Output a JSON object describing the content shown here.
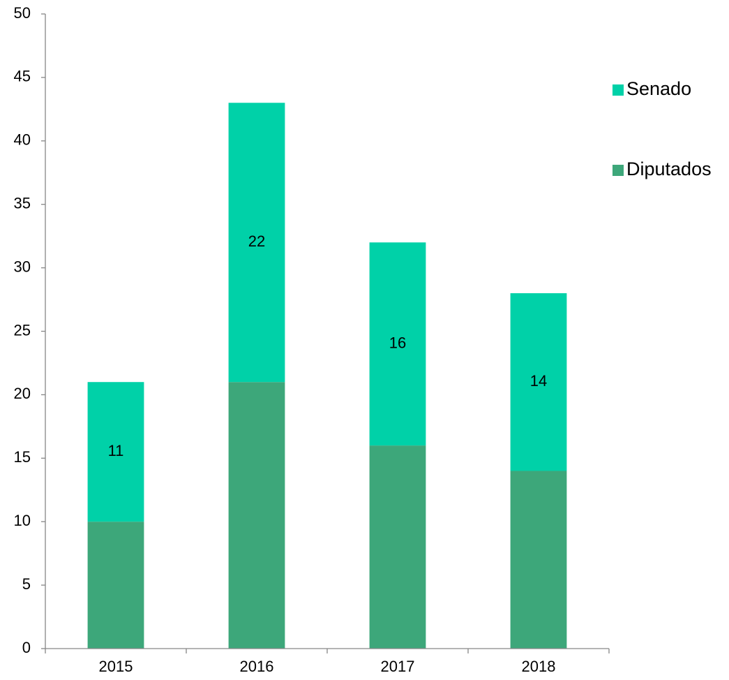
{
  "chart_data": {
    "type": "stacked_bar",
    "categories": [
      "2015",
      "2016",
      "2017",
      "2018"
    ],
    "series": [
      {
        "name": "Diputados",
        "color": "#3da77a",
        "values": [
          10,
          21,
          16,
          14
        ],
        "show_labels": false
      },
      {
        "name": "Senado",
        "color": "#00d1a8",
        "values": [
          11,
          22,
          16,
          14
        ],
        "show_labels": true
      }
    ],
    "ylim": [
      0,
      50
    ],
    "yticks": [
      0,
      5,
      10,
      15,
      20,
      25,
      30,
      35,
      40,
      45,
      50
    ],
    "grid": false,
    "legend": "right"
  }
}
